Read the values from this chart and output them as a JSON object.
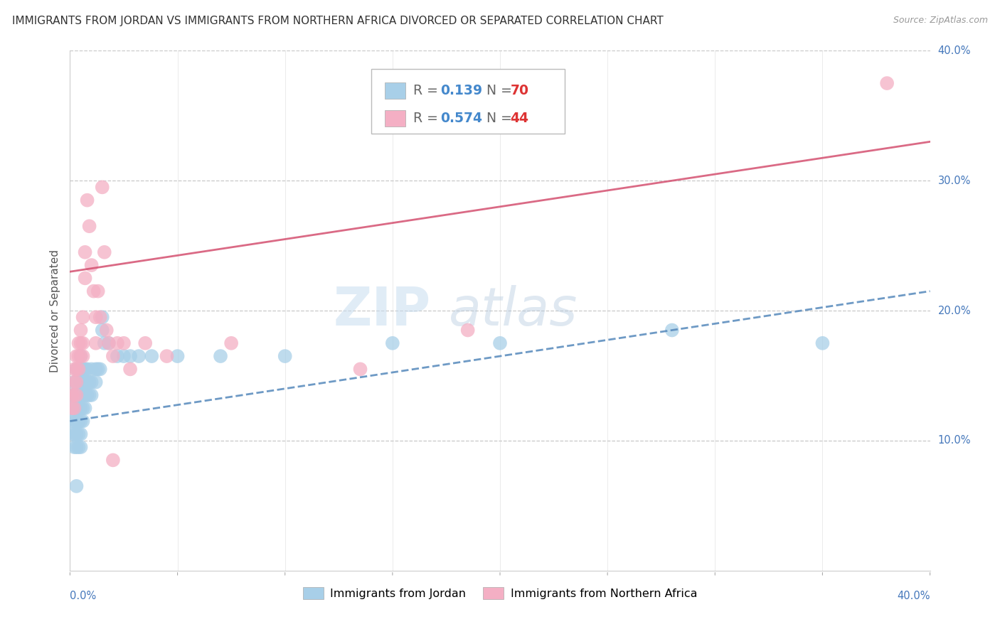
{
  "title": "IMMIGRANTS FROM JORDAN VS IMMIGRANTS FROM NORTHERN AFRICA DIVORCED OR SEPARATED CORRELATION CHART",
  "source": "Source: ZipAtlas.com",
  "ylabel": "Divorced or Separated",
  "xlim": [
    0.0,
    0.4
  ],
  "ylim": [
    0.0,
    0.4
  ],
  "legend_jordan": {
    "R": "0.139",
    "N": "70",
    "color": "#a8cfe8"
  },
  "legend_northern_africa": {
    "R": "0.574",
    "N": "44",
    "color": "#f4afc4"
  },
  "watermark_part1": "ZIP",
  "watermark_part2": "atlas",
  "jordan_color": "#a8cfe8",
  "northern_africa_color": "#f4afc4",
  "jordan_line_color": "#5588bb",
  "northern_africa_line_color": "#d45070",
  "jordan_line": {
    "x0": 0.0,
    "y0": 0.115,
    "x1": 0.4,
    "y1": 0.215
  },
  "northern_africa_line": {
    "x0": 0.0,
    "y0": 0.23,
    "x1": 0.4,
    "y1": 0.33
  },
  "jordan_scatter": [
    [
      0.001,
      0.135
    ],
    [
      0.001,
      0.125
    ],
    [
      0.001,
      0.115
    ],
    [
      0.001,
      0.105
    ],
    [
      0.002,
      0.145
    ],
    [
      0.002,
      0.135
    ],
    [
      0.002,
      0.125
    ],
    [
      0.002,
      0.115
    ],
    [
      0.002,
      0.105
    ],
    [
      0.002,
      0.095
    ],
    [
      0.003,
      0.155
    ],
    [
      0.003,
      0.145
    ],
    [
      0.003,
      0.135
    ],
    [
      0.003,
      0.125
    ],
    [
      0.003,
      0.115
    ],
    [
      0.003,
      0.105
    ],
    [
      0.003,
      0.095
    ],
    [
      0.004,
      0.155
    ],
    [
      0.004,
      0.145
    ],
    [
      0.004,
      0.135
    ],
    [
      0.004,
      0.125
    ],
    [
      0.004,
      0.115
    ],
    [
      0.004,
      0.105
    ],
    [
      0.004,
      0.095
    ],
    [
      0.005,
      0.165
    ],
    [
      0.005,
      0.155
    ],
    [
      0.005,
      0.145
    ],
    [
      0.005,
      0.135
    ],
    [
      0.005,
      0.125
    ],
    [
      0.005,
      0.115
    ],
    [
      0.005,
      0.105
    ],
    [
      0.005,
      0.095
    ],
    [
      0.006,
      0.155
    ],
    [
      0.006,
      0.145
    ],
    [
      0.006,
      0.135
    ],
    [
      0.006,
      0.125
    ],
    [
      0.006,
      0.115
    ],
    [
      0.007,
      0.155
    ],
    [
      0.007,
      0.145
    ],
    [
      0.007,
      0.135
    ],
    [
      0.007,
      0.125
    ],
    [
      0.008,
      0.155
    ],
    [
      0.008,
      0.145
    ],
    [
      0.008,
      0.135
    ],
    [
      0.009,
      0.145
    ],
    [
      0.009,
      0.135
    ],
    [
      0.01,
      0.155
    ],
    [
      0.01,
      0.145
    ],
    [
      0.01,
      0.135
    ],
    [
      0.012,
      0.155
    ],
    [
      0.012,
      0.145
    ],
    [
      0.013,
      0.155
    ],
    [
      0.014,
      0.155
    ],
    [
      0.015,
      0.195
    ],
    [
      0.015,
      0.185
    ],
    [
      0.016,
      0.175
    ],
    [
      0.018,
      0.175
    ],
    [
      0.022,
      0.165
    ],
    [
      0.025,
      0.165
    ],
    [
      0.028,
      0.165
    ],
    [
      0.032,
      0.165
    ],
    [
      0.038,
      0.165
    ],
    [
      0.05,
      0.165
    ],
    [
      0.07,
      0.165
    ],
    [
      0.1,
      0.165
    ],
    [
      0.15,
      0.175
    ],
    [
      0.2,
      0.175
    ],
    [
      0.28,
      0.185
    ],
    [
      0.003,
      0.065
    ],
    [
      0.35,
      0.175
    ]
  ],
  "northern_africa_scatter": [
    [
      0.001,
      0.135
    ],
    [
      0.001,
      0.125
    ],
    [
      0.002,
      0.155
    ],
    [
      0.002,
      0.145
    ],
    [
      0.002,
      0.135
    ],
    [
      0.002,
      0.125
    ],
    [
      0.003,
      0.165
    ],
    [
      0.003,
      0.155
    ],
    [
      0.003,
      0.145
    ],
    [
      0.003,
      0.135
    ],
    [
      0.004,
      0.175
    ],
    [
      0.004,
      0.165
    ],
    [
      0.004,
      0.155
    ],
    [
      0.005,
      0.185
    ],
    [
      0.005,
      0.175
    ],
    [
      0.005,
      0.165
    ],
    [
      0.006,
      0.195
    ],
    [
      0.006,
      0.175
    ],
    [
      0.006,
      0.165
    ],
    [
      0.007,
      0.245
    ],
    [
      0.007,
      0.225
    ],
    [
      0.008,
      0.285
    ],
    [
      0.009,
      0.265
    ],
    [
      0.01,
      0.235
    ],
    [
      0.011,
      0.215
    ],
    [
      0.012,
      0.195
    ],
    [
      0.012,
      0.175
    ],
    [
      0.013,
      0.215
    ],
    [
      0.014,
      0.195
    ],
    [
      0.015,
      0.295
    ],
    [
      0.016,
      0.245
    ],
    [
      0.017,
      0.185
    ],
    [
      0.018,
      0.175
    ],
    [
      0.02,
      0.165
    ],
    [
      0.02,
      0.085
    ],
    [
      0.022,
      0.175
    ],
    [
      0.025,
      0.175
    ],
    [
      0.028,
      0.155
    ],
    [
      0.035,
      0.175
    ],
    [
      0.045,
      0.165
    ],
    [
      0.075,
      0.175
    ],
    [
      0.135,
      0.155
    ],
    [
      0.185,
      0.185
    ],
    [
      0.38,
      0.375
    ]
  ],
  "background_color": "#ffffff",
  "grid_color": "#c8c8c8",
  "title_fontsize": 11,
  "axis_fontsize": 11,
  "tick_fontsize": 10.5,
  "tick_color": "#4477bb",
  "ytick_right_positions": [
    0.1,
    0.2,
    0.3,
    0.4
  ],
  "ytick_right_labels": [
    "10.0%",
    "20.0%",
    "30.0%",
    "40.0%"
  ],
  "xtick_positions": [
    0.0,
    0.4
  ],
  "xtick_labels": [
    "0.0%",
    "40.0%"
  ]
}
